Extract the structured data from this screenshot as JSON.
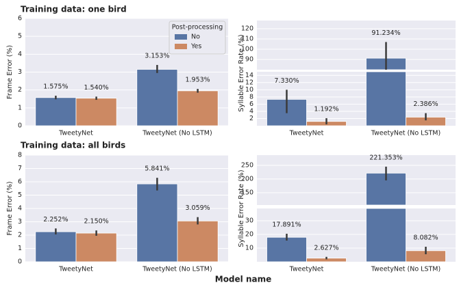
{
  "xlabel": "Model name",
  "chart_data": [
    {
      "type": "bar",
      "title": "Training data: one bird",
      "ylabel": "Frame Error (%)",
      "categories": [
        "TweetyNet",
        "TweetyNet (No LSTM)"
      ],
      "ylim": [
        0,
        6
      ],
      "yticks": [
        0,
        1,
        2,
        3,
        4,
        5,
        6
      ],
      "grid": true,
      "legend": "upper right",
      "legend_title": "Post-processing",
      "series": [
        {
          "name": "No",
          "color": "#5875a4",
          "values": [
            1.575,
            3.153
          ],
          "value_labels": [
            "1.575%",
            "3.153%"
          ],
          "ci_low": [
            1.48,
            2.95
          ],
          "ci_high": [
            1.68,
            3.4
          ]
        },
        {
          "name": "Yes",
          "color": "#cc8963",
          "values": [
            1.54,
            1.953
          ],
          "value_labels": [
            "1.540%",
            "1.953%"
          ],
          "ci_low": [
            1.45,
            1.85
          ],
          "ci_high": [
            1.63,
            2.06
          ]
        }
      ]
    },
    {
      "type": "bar",
      "ylabel": "Syllable Error Rate (%)",
      "categories": [
        "TweetyNet",
        "TweetyNet (No LSTM)"
      ],
      "ylim": [
        0,
        15
      ],
      "yticks": [
        2,
        4,
        6,
        8,
        10,
        12,
        14
      ],
      "upper_ylim": [
        80,
        128
      ],
      "upper_yticks": [
        90,
        100,
        110,
        120
      ],
      "grid": true,
      "series": [
        {
          "name": "No",
          "color": "#5875a4",
          "values": [
            7.33,
            91.234
          ],
          "value_labels": [
            "7.330%",
            "91.234%"
          ],
          "ci_low": [
            3.5,
            75
          ],
          "ci_high": [
            10,
            107
          ]
        },
        {
          "name": "Yes",
          "color": "#cc8963",
          "values": [
            1.192,
            2.386
          ],
          "value_labels": [
            "1.192%",
            "2.386%"
          ],
          "ci_low": [
            0.4,
            1.5
          ],
          "ci_high": [
            2.1,
            3.5
          ]
        }
      ]
    },
    {
      "type": "bar",
      "title": "Training data: all birds",
      "ylabel": "Frame Error (%)",
      "categories": [
        "TweetyNet",
        "TweetyNet (No LSTM)"
      ],
      "ylim": [
        0,
        8
      ],
      "yticks": [
        0,
        1,
        2,
        3,
        4,
        5,
        6,
        7,
        8
      ],
      "grid": true,
      "series": [
        {
          "name": "No",
          "color": "#5875a4",
          "values": [
            2.252,
            5.841
          ],
          "value_labels": [
            "2.252%",
            "5.841%"
          ],
          "ci_low": [
            2.05,
            5.35
          ],
          "ci_high": [
            2.5,
            6.3
          ]
        },
        {
          "name": "Yes",
          "color": "#cc8963",
          "values": [
            2.15,
            3.059
          ],
          "value_labels": [
            "2.150%",
            "3.059%"
          ],
          "ci_low": [
            1.95,
            2.8
          ],
          "ci_high": [
            2.35,
            3.35
          ]
        }
      ]
    },
    {
      "type": "bar",
      "ylabel": "Syllable Error Rate (%)",
      "categories": [
        "TweetyNet",
        "TweetyNet (No LSTM)"
      ],
      "ylim": [
        0,
        39
      ],
      "yticks": [
        10,
        20,
        30
      ],
      "upper_ylim": [
        105,
        287
      ],
      "upper_yticks": [
        150,
        200,
        250
      ],
      "grid": true,
      "series": [
        {
          "name": "No",
          "color": "#5875a4",
          "values": [
            17.891,
            221.353
          ],
          "value_labels": [
            "17.891%",
            "221.353%"
          ],
          "ci_low": [
            15.5,
            195
          ],
          "ci_high": [
            20.5,
            245
          ]
        },
        {
          "name": "Yes",
          "color": "#cc8963",
          "values": [
            2.627,
            8.082
          ],
          "value_labels": [
            "2.627%",
            "8.082%"
          ],
          "ci_low": [
            1.8,
            5.5
          ],
          "ci_high": [
            3.6,
            11
          ]
        }
      ]
    }
  ]
}
